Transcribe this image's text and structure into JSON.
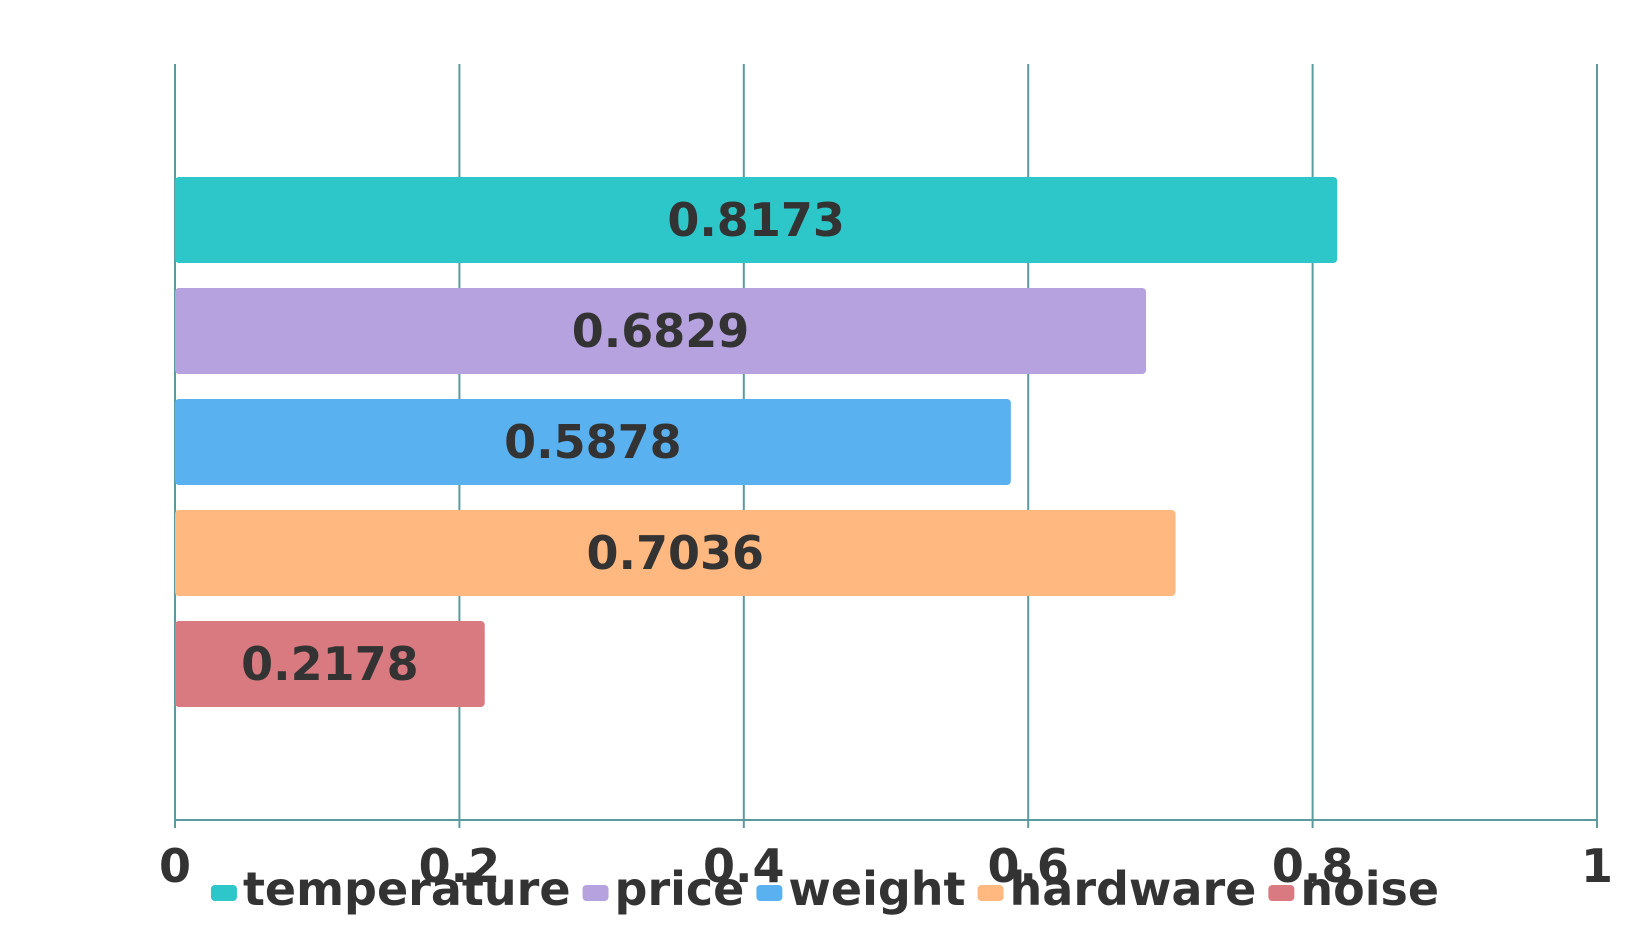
{
  "chart_data": {
    "type": "bar",
    "orientation": "horizontal",
    "title": "",
    "xlabel": "",
    "ylabel": "",
    "xlim": [
      0,
      1
    ],
    "x_ticks": [
      "0",
      "0.2",
      "0.4",
      "0.6",
      "0.8",
      "1"
    ],
    "grid": true,
    "legend_position": "bottom",
    "series": [
      {
        "name": "temperature",
        "value": 0.8173,
        "label": "0.8173",
        "color": "#2ec7c9"
      },
      {
        "name": "price",
        "value": 0.6829,
        "label": "0.6829",
        "color": "#b6a2de"
      },
      {
        "name": "weight",
        "value": 0.5878,
        "label": "0.5878",
        "color": "#5ab1ef"
      },
      {
        "name": "hardware",
        "value": 0.7036,
        "label": "0.7036",
        "color": "#ffb980"
      },
      {
        "name": "noise",
        "value": 0.2178,
        "label": "0.2178",
        "color": "#d87a80"
      }
    ],
    "gridline_color": "#5b9a9e"
  }
}
